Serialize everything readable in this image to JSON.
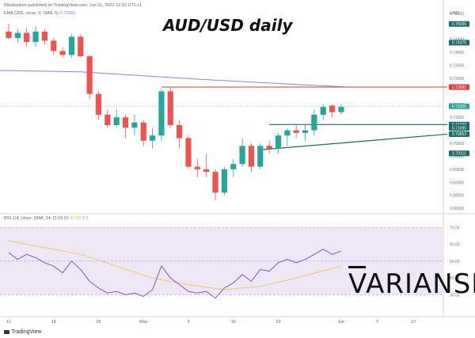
{
  "header": {
    "publisher": "Riksbanken published on TradingView.com, Jun 01, 2022 12:23 UTC+1",
    "title": "AUD/USD daily",
    "ema_label": "EMA (200, close, 0, SMA, 5)",
    "ema_value": "0.72680",
    "rsi_label": "RSI (14, close, SMA, 14, 2)",
    "rsi_values": [
      "56.01",
      "47.69",
      "0",
      "0"
    ]
  },
  "logo": {
    "text": "VARIANSE",
    "first_letter": "V",
    "rest": "ARIANSE"
  },
  "footer": {
    "brand": "TradingView"
  },
  "colors": {
    "up": "#26a69a",
    "down": "#ef5350",
    "ema": "#7b8cde",
    "resistance": "#e53935",
    "support": "#1b6b68",
    "rsi": "#7e57c2",
    "rsi_ma": "#f5c76a",
    "rsi_band": "#ede7f6"
  },
  "axis": {
    "currency": "USD",
    "price_ticks": [
      "0.75500",
      "0.74500",
      "0.74000",
      "0.73500",
      "0.73000",
      "0.72000",
      "0.71500",
      "0.71000",
      "0.70500",
      "0.70000",
      "0.69500",
      "0.69000",
      "0.68500",
      "0.68000"
    ],
    "rsi_ticks": [
      "70.00",
      "60.00",
      "50.00",
      "40.00",
      "30.00"
    ],
    "x_ticks": [
      "11",
      "18",
      "25",
      "May",
      "9",
      "16",
      "23",
      "Jun",
      "7",
      "13"
    ]
  },
  "price_tags": [
    {
      "text": "0.75095",
      "value": 0.75095,
      "color": "#1b6b68"
    },
    {
      "text": "0.74375",
      "value": 0.74375,
      "color": "#1b6b68"
    },
    {
      "text": "0.72665",
      "value": 0.72665,
      "color": "#e53935"
    },
    {
      "text": "0.71925",
      "value": 0.71925,
      "color": "#26a69a"
    },
    {
      "text": "0.71222",
      "value": 0.71222,
      "color": "#1b6b68"
    },
    {
      "text": "0.71095",
      "value": 0.71095,
      "color": "#1b6b68"
    },
    {
      "text": "0.70853",
      "value": 0.70853,
      "color": "#1b6b68"
    },
    {
      "text": "0.70111",
      "value": 0.70111,
      "color": "#1b6b68"
    }
  ],
  "chart_data": {
    "type": "candlestick",
    "title": "AUD/USD daily",
    "ylim": [
      0.6785,
      0.7565
    ],
    "rsi_ylim": [
      25,
      72
    ],
    "candles": [
      {
        "x": "Apr 11",
        "o": 0.748,
        "h": 0.751,
        "l": 0.745,
        "c": 0.7455
      },
      {
        "x": "Apr 12",
        "o": 0.7455,
        "h": 0.749,
        "l": 0.744,
        "c": 0.7475
      },
      {
        "x": "Apr 13",
        "o": 0.7475,
        "h": 0.7495,
        "l": 0.742,
        "c": 0.744
      },
      {
        "x": "Apr 14",
        "o": 0.744,
        "h": 0.75,
        "l": 0.742,
        "c": 0.748
      },
      {
        "x": "Apr 15",
        "o": 0.748,
        "h": 0.749,
        "l": 0.743,
        "c": 0.7445
      },
      {
        "x": "Apr 18",
        "o": 0.7445,
        "h": 0.7455,
        "l": 0.739,
        "c": 0.7405
      },
      {
        "x": "Apr 19",
        "o": 0.7405,
        "h": 0.742,
        "l": 0.738,
        "c": 0.739
      },
      {
        "x": "Apr 20",
        "o": 0.739,
        "h": 0.747,
        "l": 0.738,
        "c": 0.746
      },
      {
        "x": "Apr 21",
        "o": 0.746,
        "h": 0.747,
        "l": 0.738,
        "c": 0.7385
      },
      {
        "x": "Apr 22",
        "o": 0.7385,
        "h": 0.739,
        "l": 0.722,
        "c": 0.724
      },
      {
        "x": "Apr 25",
        "o": 0.724,
        "h": 0.725,
        "l": 0.714,
        "c": 0.716
      },
      {
        "x": "Apr 26",
        "o": 0.716,
        "h": 0.718,
        "l": 0.711,
        "c": 0.712
      },
      {
        "x": "Apr 27",
        "o": 0.712,
        "h": 0.718,
        "l": 0.711,
        "c": 0.715
      },
      {
        "x": "Apr 28",
        "o": 0.715,
        "h": 0.716,
        "l": 0.707,
        "c": 0.711
      },
      {
        "x": "Apr 29",
        "o": 0.711,
        "h": 0.716,
        "l": 0.708,
        "c": 0.713
      },
      {
        "x": "May 2",
        "o": 0.713,
        "h": 0.714,
        "l": 0.704,
        "c": 0.706
      },
      {
        "x": "May 3",
        "o": 0.706,
        "h": 0.711,
        "l": 0.703,
        "c": 0.708
      },
      {
        "x": "May 4",
        "o": 0.708,
        "h": 0.726,
        "l": 0.706,
        "c": 0.725
      },
      {
        "x": "May 5",
        "o": 0.725,
        "h": 0.7266,
        "l": 0.711,
        "c": 0.712
      },
      {
        "x": "May 6",
        "o": 0.712,
        "h": 0.714,
        "l": 0.703,
        "c": 0.707
      },
      {
        "x": "May 9",
        "o": 0.707,
        "h": 0.708,
        "l": 0.695,
        "c": 0.696
      },
      {
        "x": "May 10",
        "o": 0.696,
        "h": 0.699,
        "l": 0.692,
        "c": 0.695
      },
      {
        "x": "May 11",
        "o": 0.695,
        "h": 0.701,
        "l": 0.692,
        "c": 0.694
      },
      {
        "x": "May 12",
        "o": 0.694,
        "h": 0.695,
        "l": 0.683,
        "c": 0.686
      },
      {
        "x": "May 13",
        "o": 0.686,
        "h": 0.696,
        "l": 0.685,
        "c": 0.695
      },
      {
        "x": "May 16",
        "o": 0.695,
        "h": 0.699,
        "l": 0.692,
        "c": 0.697
      },
      {
        "x": "May 17",
        "o": 0.697,
        "h": 0.707,
        "l": 0.696,
        "c": 0.704
      },
      {
        "x": "May 18",
        "o": 0.704,
        "h": 0.705,
        "l": 0.694,
        "c": 0.696
      },
      {
        "x": "May 19",
        "o": 0.696,
        "h": 0.705,
        "l": 0.695,
        "c": 0.704
      },
      {
        "x": "May 20",
        "o": 0.704,
        "h": 0.706,
        "l": 0.701,
        "c": 0.703
      },
      {
        "x": "May 23",
        "o": 0.703,
        "h": 0.709,
        "l": 0.701,
        "c": 0.708
      },
      {
        "x": "May 24",
        "o": 0.708,
        "h": 0.711,
        "l": 0.704,
        "c": 0.71
      },
      {
        "x": "May 25",
        "o": 0.71,
        "h": 0.712,
        "l": 0.707,
        "c": 0.709
      },
      {
        "x": "May 26",
        "o": 0.709,
        "h": 0.712,
        "l": 0.706,
        "c": 0.71
      },
      {
        "x": "May 27",
        "o": 0.71,
        "h": 0.718,
        "l": 0.708,
        "c": 0.716
      },
      {
        "x": "May 30",
        "o": 0.716,
        "h": 0.72,
        "l": 0.714,
        "c": 0.719
      },
      {
        "x": "May 31",
        "o": 0.7195,
        "h": 0.72,
        "l": 0.715,
        "c": 0.717
      },
      {
        "x": "Jun 1",
        "o": 0.717,
        "h": 0.72,
        "l": 0.716,
        "c": 0.719
      }
    ],
    "ema200": [
      {
        "i": 0,
        "v": 0.733
      },
      {
        "i": 8,
        "v": 0.7325
      },
      {
        "i": 15,
        "v": 0.731
      },
      {
        "i": 22,
        "v": 0.7295
      },
      {
        "i": 30,
        "v": 0.728
      },
      {
        "i": 37,
        "v": 0.7268
      }
    ],
    "resistance": {
      "value": 0.72665,
      "from_index": 17,
      "to_index": 37
    },
    "support_h": {
      "value": 0.71222,
      "from_index": 29
    },
    "trendline": {
      "from_index": 28,
      "from_value": 0.7025,
      "to_value": 0.70853
    },
    "rsi": [
      {
        "i": 0,
        "v": 55
      },
      {
        "i": 1,
        "v": 51
      },
      {
        "i": 2,
        "v": 54
      },
      {
        "i": 3,
        "v": 52
      },
      {
        "i": 4,
        "v": 49
      },
      {
        "i": 5,
        "v": 47
      },
      {
        "i": 6,
        "v": 43
      },
      {
        "i": 7,
        "v": 50
      },
      {
        "i": 8,
        "v": 45
      },
      {
        "i": 9,
        "v": 38
      },
      {
        "i": 10,
        "v": 34
      },
      {
        "i": 11,
        "v": 31
      },
      {
        "i": 12,
        "v": 32
      },
      {
        "i": 13,
        "v": 30
      },
      {
        "i": 14,
        "v": 31
      },
      {
        "i": 15,
        "v": 29
      },
      {
        "i": 16,
        "v": 33
      },
      {
        "i": 17,
        "v": 47
      },
      {
        "i": 18,
        "v": 40
      },
      {
        "i": 19,
        "v": 36
      },
      {
        "i": 20,
        "v": 32
      },
      {
        "i": 21,
        "v": 31
      },
      {
        "i": 22,
        "v": 32
      },
      {
        "i": 23,
        "v": 28
      },
      {
        "i": 24,
        "v": 34
      },
      {
        "i": 25,
        "v": 37
      },
      {
        "i": 26,
        "v": 42
      },
      {
        "i": 27,
        "v": 38
      },
      {
        "i": 28,
        "v": 45
      },
      {
        "i": 29,
        "v": 44
      },
      {
        "i": 30,
        "v": 49
      },
      {
        "i": 31,
        "v": 51
      },
      {
        "i": 32,
        "v": 49
      },
      {
        "i": 33,
        "v": 51
      },
      {
        "i": 34,
        "v": 54
      },
      {
        "i": 35,
        "v": 57
      },
      {
        "i": 36,
        "v": 54
      },
      {
        "i": 37,
        "v": 56
      }
    ],
    "rsi_ma": [
      {
        "i": 0,
        "v": 62
      },
      {
        "i": 4,
        "v": 58
      },
      {
        "i": 8,
        "v": 54
      },
      {
        "i": 12,
        "v": 47
      },
      {
        "i": 16,
        "v": 40
      },
      {
        "i": 20,
        "v": 36
      },
      {
        "i": 24,
        "v": 33
      },
      {
        "i": 28,
        "v": 35
      },
      {
        "i": 32,
        "v": 40
      },
      {
        "i": 37,
        "v": 47
      }
    ],
    "rsi_band": [
      30,
      70
    ],
    "rsi_mid": 50
  }
}
